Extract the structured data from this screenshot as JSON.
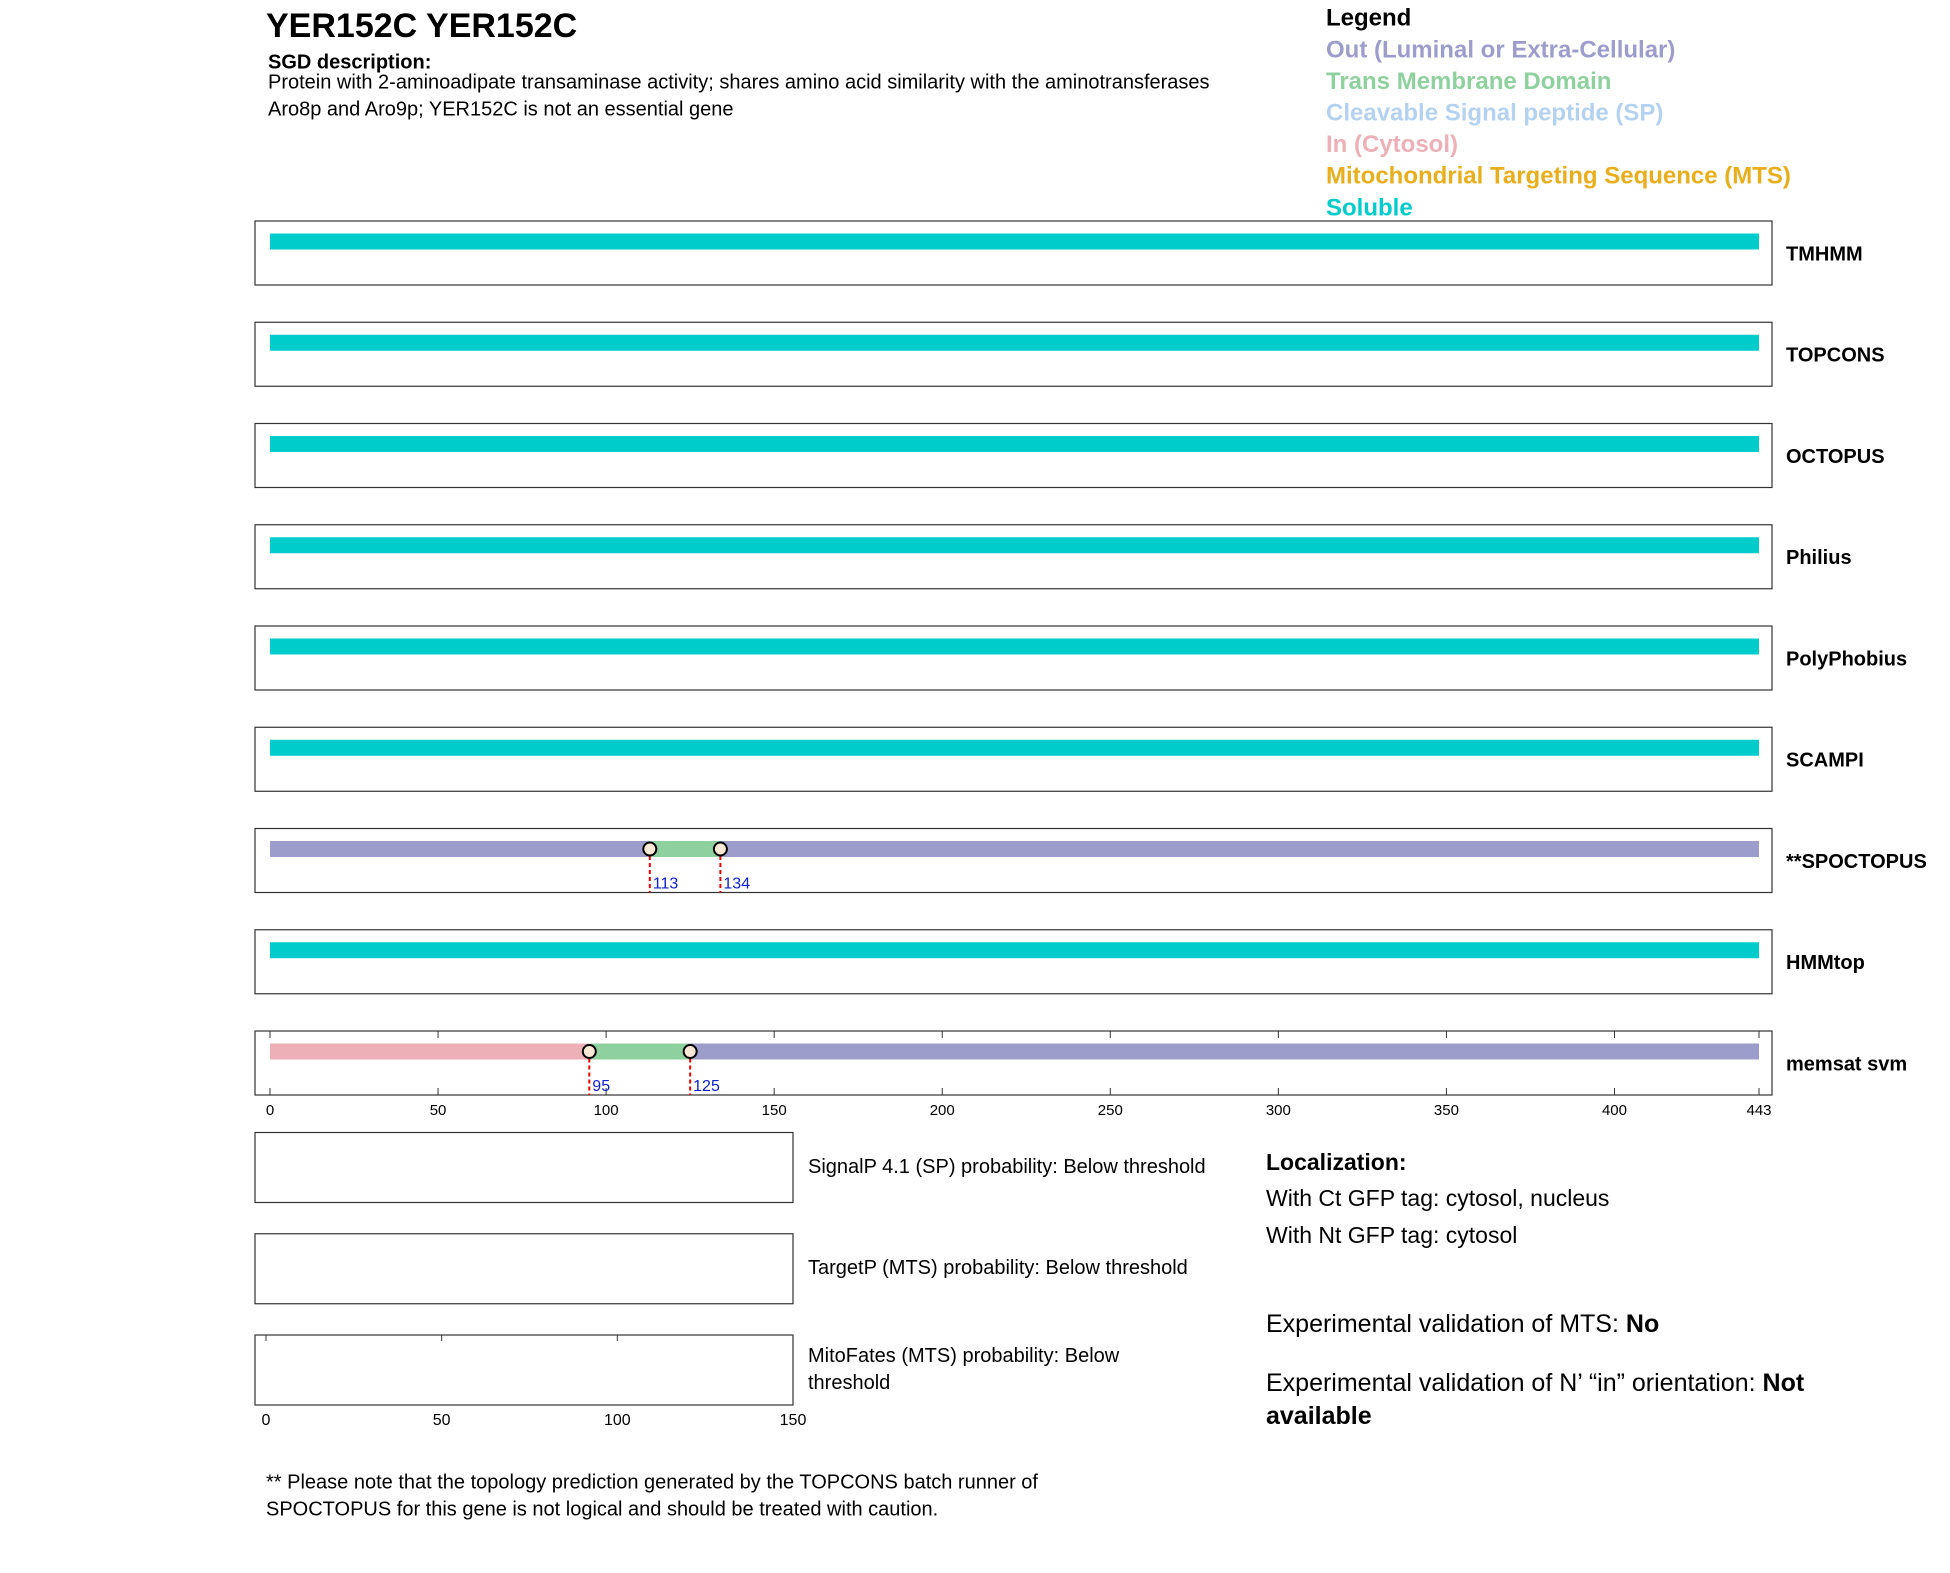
{
  "chart_data": {
    "type": "topology",
    "title": "YER152C  YER152C",
    "description_label": "SGD description:",
    "description_lines": [
      "Protein with 2-aminoadipate transaminase activity; shares amino acid similarity with the aminotransferases",
      "Aro8p and Aro9p; YER152C is not an essential gene"
    ],
    "legend": {
      "title": "Legend",
      "items": [
        {
          "name": "Out (Luminal or Extra-Cellular)",
          "color": "#9d9dcc"
        },
        {
          "name": "Trans Membrane Domain",
          "color": "#8fd19e"
        },
        {
          "name": "Cleavable Signal peptide (SP)",
          "color": "#b4d2ef"
        },
        {
          "name": "In (Cytosol)",
          "color": "#ecb0b6"
        },
        {
          "name": "Mitochondrial Targeting Sequence (MTS)",
          "color": "#e8ae1c"
        },
        {
          "name": "Soluble",
          "color": "#00cccc"
        }
      ]
    },
    "xlim": [
      0,
      443
    ],
    "xticks": [
      0,
      50,
      100,
      150,
      200,
      250,
      300,
      350,
      400,
      443
    ],
    "tracks": [
      {
        "name": "TMHMM",
        "segments": [
          {
            "start": 0,
            "end": 443,
            "color": "#00cccc"
          }
        ]
      },
      {
        "name": "TOPCONS",
        "segments": [
          {
            "start": 0,
            "end": 443,
            "color": "#00cccc"
          }
        ]
      },
      {
        "name": "OCTOPUS",
        "segments": [
          {
            "start": 0,
            "end": 443,
            "color": "#00cccc"
          }
        ]
      },
      {
        "name": "Philius",
        "segments": [
          {
            "start": 0,
            "end": 443,
            "color": "#00cccc"
          }
        ]
      },
      {
        "name": "PolyPhobius",
        "segments": [
          {
            "start": 0,
            "end": 443,
            "color": "#00cccc"
          }
        ]
      },
      {
        "name": "SCAMPI",
        "segments": [
          {
            "start": 0,
            "end": 443,
            "color": "#00cccc"
          }
        ]
      },
      {
        "name": "**SPOCTOPUS",
        "segments": [
          {
            "start": 0,
            "end": 113,
            "color": "#9d9dcc"
          },
          {
            "start": 113,
            "end": 134,
            "color": "#8fd19e"
          },
          {
            "start": 134,
            "end": 443,
            "color": "#9d9dcc"
          }
        ],
        "boundaries": [
          113,
          134
        ]
      },
      {
        "name": "HMMtop",
        "segments": [
          {
            "start": 0,
            "end": 443,
            "color": "#00cccc"
          }
        ]
      },
      {
        "name": "memsat svm",
        "segments": [
          {
            "start": 0,
            "end": 95,
            "color": "#ecb0b6"
          },
          {
            "start": 95,
            "end": 125,
            "color": "#8fd19e"
          },
          {
            "start": 125,
            "end": 443,
            "color": "#9d9dcc"
          }
        ],
        "boundaries": [
          95,
          125
        ],
        "axis": true
      }
    ]
  },
  "probability_panels": {
    "xlim": [
      0,
      150
    ],
    "xticks": [
      0,
      50,
      100,
      150
    ],
    "panels": [
      {
        "label_lines": [
          "SignalP 4.1 (SP) probability: Below threshold"
        ]
      },
      {
        "label_lines": [
          "TargetP (MTS) probability: Below threshold"
        ]
      },
      {
        "label_lines": [
          "MitoFates (MTS) probability: Below",
          "threshold"
        ],
        "axis": true
      }
    ]
  },
  "localization": {
    "title": "Localization:",
    "lines": [
      "With Ct GFP tag: cytosol, nucleus",
      "With Nt GFP tag: cytosol"
    ],
    "validations": [
      {
        "label": "Experimental validation of MTS: ",
        "value": "No"
      },
      {
        "label": "Experimental validation of N’ “in” orientation: ",
        "value": "Not available"
      }
    ]
  },
  "footnote_lines": [
    "** Please note that the topology prediction generated by the TOPCONS batch runner of",
    "SPOCTOPUS for this gene is not logical and should be treated with caution."
  ]
}
